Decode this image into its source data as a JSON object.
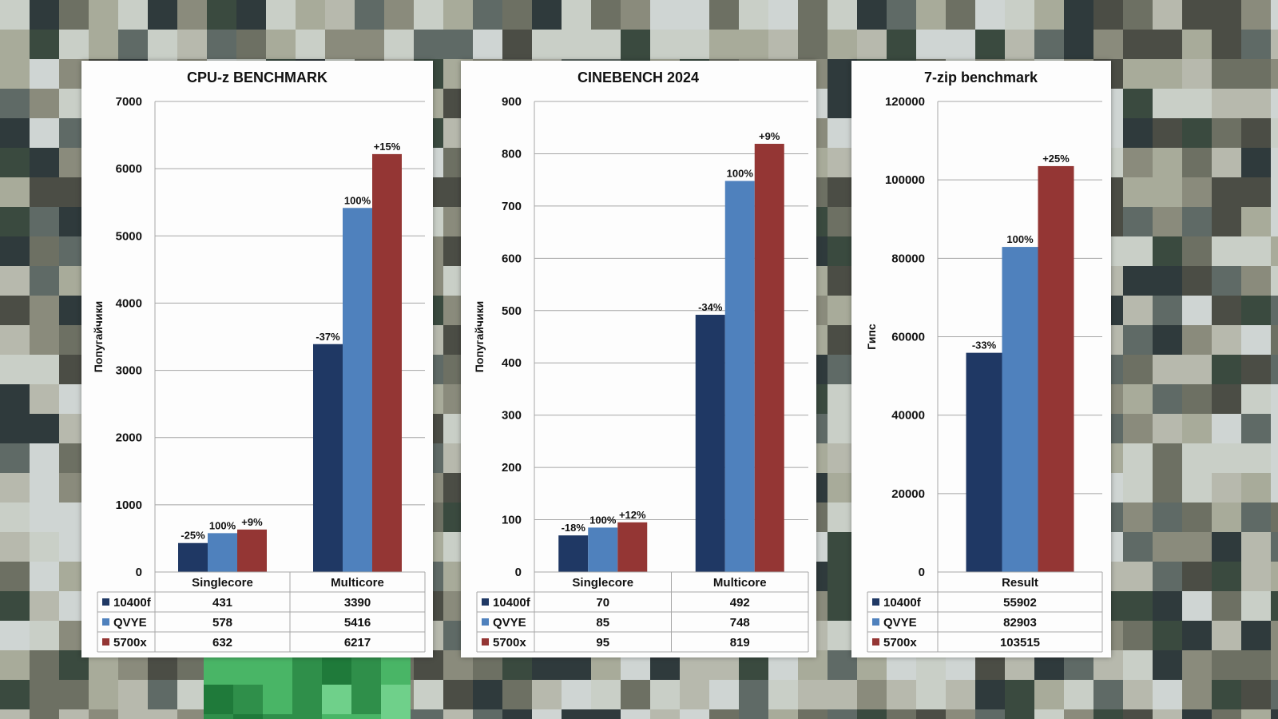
{
  "background": {
    "colors": [
      "#8a8b7c",
      "#6d7063",
      "#a8ab9a",
      "#4b4d45",
      "#c9cfc7",
      "#2f3a3c",
      "#5f6a66",
      "#b7b9ad",
      "#3a4a3f",
      "#cfd5d3"
    ]
  },
  "series_colors": {
    "10400f": "#1f3864",
    "QVYE": "#4f81bd",
    "5700x": "#943634"
  },
  "chart_data": [
    {
      "type": "bar",
      "title": "CPU-z BENCHMARK",
      "ylabel": "Попугайчики",
      "ylim": [
        0,
        7000
      ],
      "yticks": [
        "0",
        "1000",
        "2000",
        "3000",
        "4000",
        "5000",
        "6000",
        "7000"
      ],
      "categories": [
        "Singlecore",
        "Multicore"
      ],
      "series": [
        {
          "name": "10400f",
          "values": [
            431,
            3390
          ],
          "labels": [
            "-25%",
            "-37%"
          ]
        },
        {
          "name": "QVYE",
          "values": [
            578,
            5416
          ],
          "labels": [
            "100%",
            "100%"
          ]
        },
        {
          "name": "5700x",
          "values": [
            632,
            6217
          ],
          "labels": [
            "+9%",
            "+15%"
          ]
        }
      ],
      "table": [
        [
          "431",
          "3390"
        ],
        [
          "578",
          "5416"
        ],
        [
          "632",
          "6217"
        ]
      ],
      "grid": true,
      "legend": "data table"
    },
    {
      "type": "bar",
      "title": "CINEBENCH 2024",
      "ylabel": "Попугайчики",
      "ylim": [
        0,
        900
      ],
      "yticks": [
        "0",
        "100",
        "200",
        "300",
        "400",
        "500",
        "600",
        "700",
        "800",
        "900"
      ],
      "categories": [
        "Singlecore",
        "Multicore"
      ],
      "series": [
        {
          "name": "10400f",
          "values": [
            70,
            492
          ],
          "labels": [
            "-18%",
            "-34%"
          ]
        },
        {
          "name": "QVYE",
          "values": [
            85,
            748
          ],
          "labels": [
            "100%",
            "100%"
          ]
        },
        {
          "name": "5700x",
          "values": [
            95,
            819
          ],
          "labels": [
            "+12%",
            "+9%"
          ]
        }
      ],
      "table": [
        [
          "70",
          "492"
        ],
        [
          "85",
          "748"
        ],
        [
          "95",
          "819"
        ]
      ],
      "grid": true,
      "legend": "data table"
    },
    {
      "type": "bar",
      "title": "7-zip benchmark",
      "ylabel": "Гипс",
      "ylim": [
        0,
        120000
      ],
      "yticks": [
        "0",
        "20000",
        "40000",
        "60000",
        "80000",
        "100000",
        "120000"
      ],
      "categories": [
        "Result"
      ],
      "series": [
        {
          "name": "10400f",
          "values": [
            55902
          ],
          "labels": [
            "-33%"
          ]
        },
        {
          "name": "QVYE",
          "values": [
            82903
          ],
          "labels": [
            "100%"
          ]
        },
        {
          "name": "5700x",
          "values": [
            103515
          ],
          "labels": [
            "+25%"
          ]
        }
      ],
      "table": [
        [
          "55902"
        ],
        [
          "82903"
        ],
        [
          "103515"
        ]
      ],
      "grid": true,
      "legend": "data table"
    }
  ]
}
